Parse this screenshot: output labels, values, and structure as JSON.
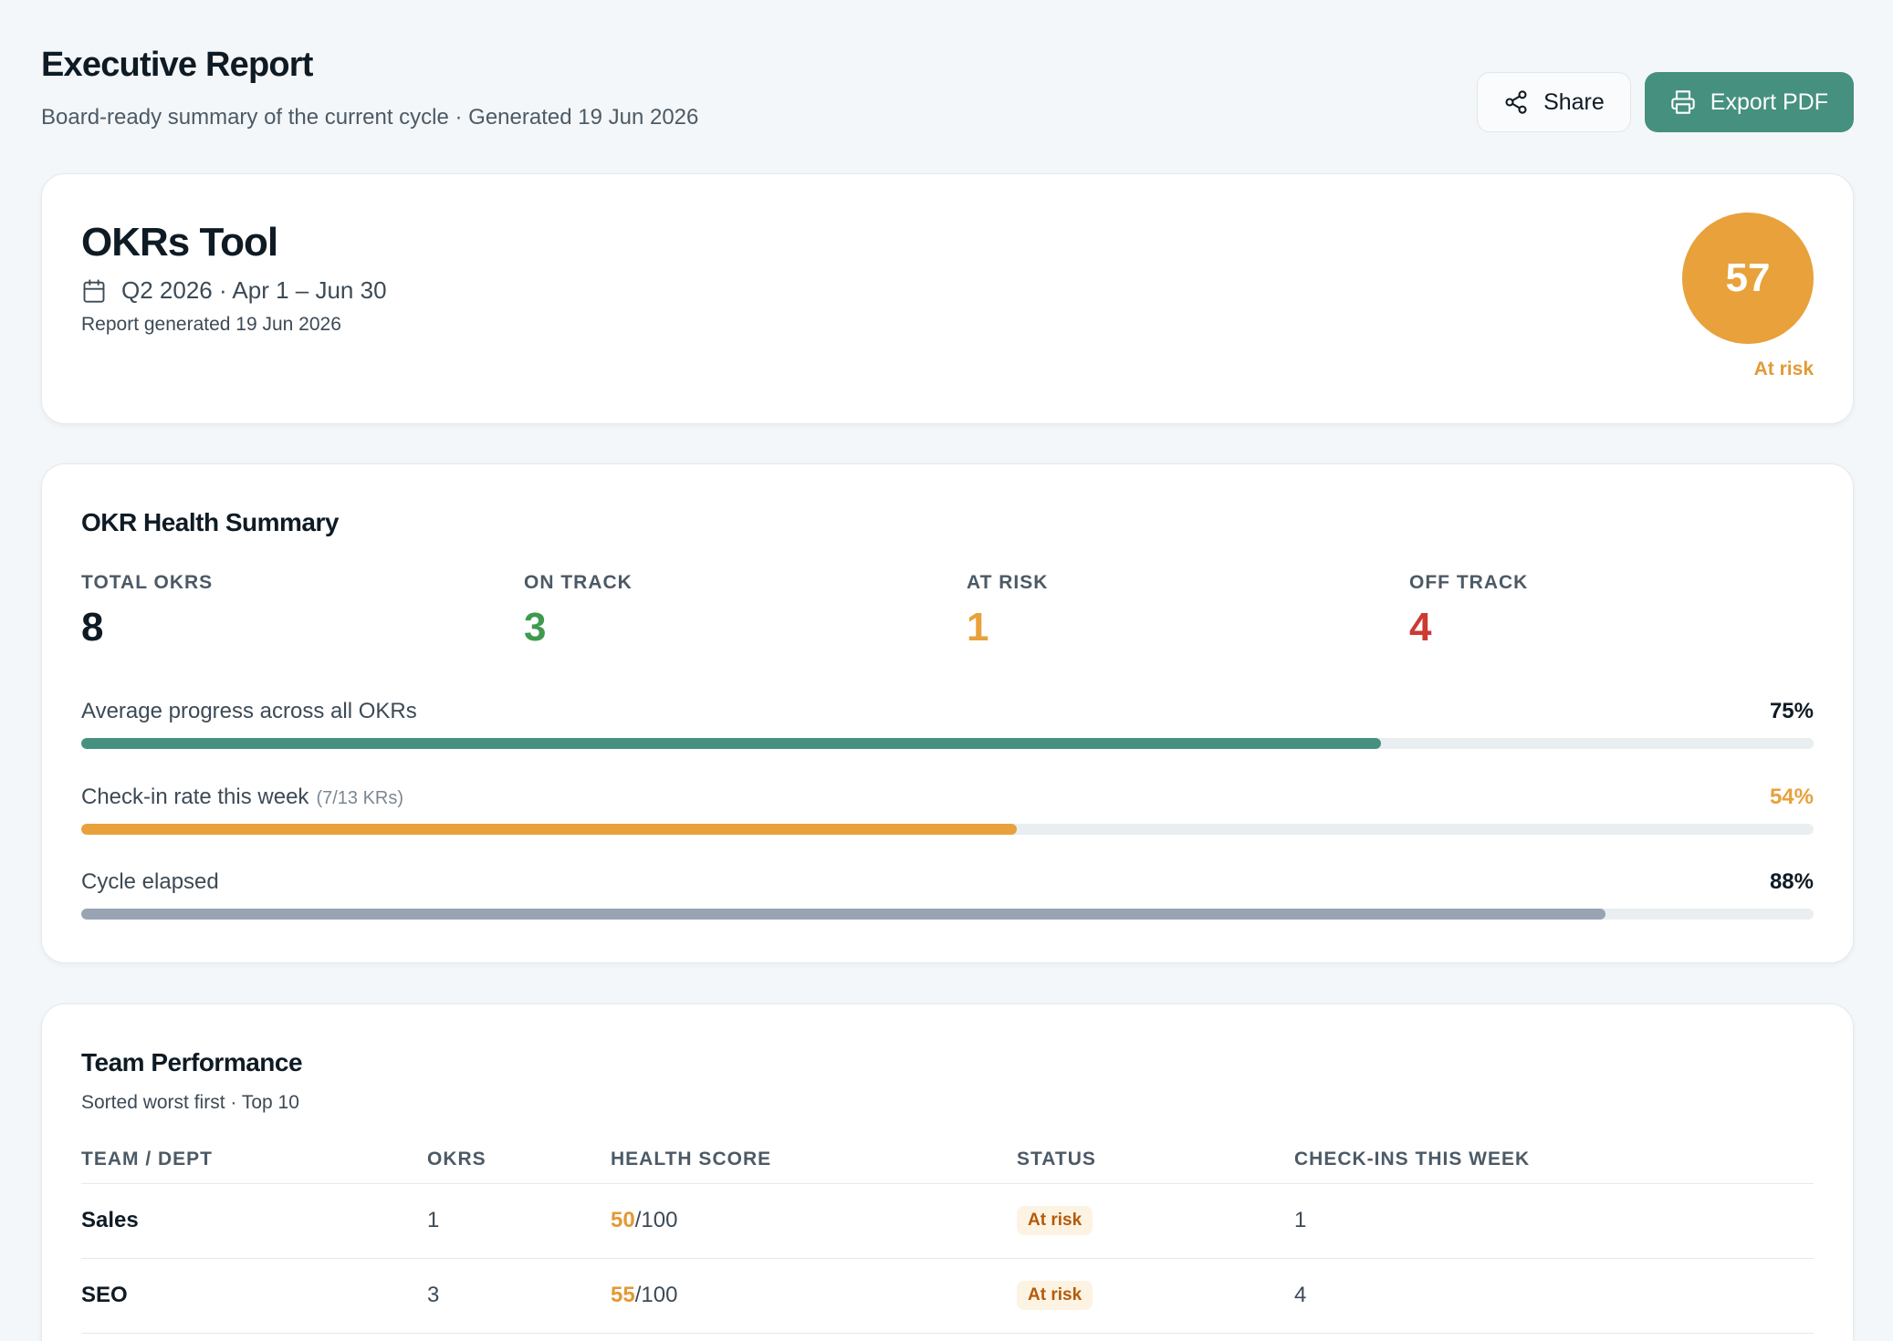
{
  "header": {
    "title": "Executive Report",
    "subtitle": "Board-ready summary of the current cycle · Generated 19 Jun 2026",
    "share_label": "Share",
    "export_label": "Export PDF"
  },
  "okr": {
    "name": "OKRs Tool",
    "period": "Q2 2026 · Apr 1 – Jun 30",
    "generated": "Report generated 19 Jun 2026",
    "score": "57",
    "score_status": "At risk"
  },
  "health": {
    "title": "OKR Health Summary",
    "stats": [
      {
        "label": "TOTAL OKRS",
        "value": "8",
        "color": "#0f1b24"
      },
      {
        "label": "ON TRACK",
        "value": "3",
        "color": "#3f9a4f"
      },
      {
        "label": "AT RISK",
        "value": "1",
        "color": "#e8a13b"
      },
      {
        "label": "OFF TRACK",
        "value": "4",
        "color": "#cc3a31"
      }
    ],
    "progress": [
      {
        "label": "Average progress across all OKRs",
        "note": "",
        "value_text": "75%",
        "fraction": 0.75,
        "color": "#46907f",
        "value_color": "#0f1b24"
      },
      {
        "label": "Check-in rate this week",
        "note": "(7/13 KRs)",
        "value_text": "54%",
        "fraction": 0.54,
        "color": "#e8a13b",
        "value_color": "#e8a13b"
      },
      {
        "label": "Cycle elapsed",
        "note": "",
        "value_text": "88%",
        "fraction": 0.88,
        "color": "#98a4b4",
        "value_color": "#0f1b24"
      }
    ]
  },
  "team": {
    "title": "Team Performance",
    "subtitle": "Sorted worst first · Top 10",
    "columns": [
      "TEAM / DEPT",
      "OKRS",
      "HEALTH SCORE",
      "STATUS",
      "CHECK-INS THIS WEEK"
    ],
    "rows": [
      {
        "team": "Sales",
        "okrs": "1",
        "score": "50",
        "score_suffix": "/100",
        "status": "At risk",
        "checkins": "1"
      },
      {
        "team": "SEO",
        "okrs": "3",
        "score": "55",
        "score_suffix": "/100",
        "status": "At risk",
        "checkins": "4"
      }
    ]
  }
}
